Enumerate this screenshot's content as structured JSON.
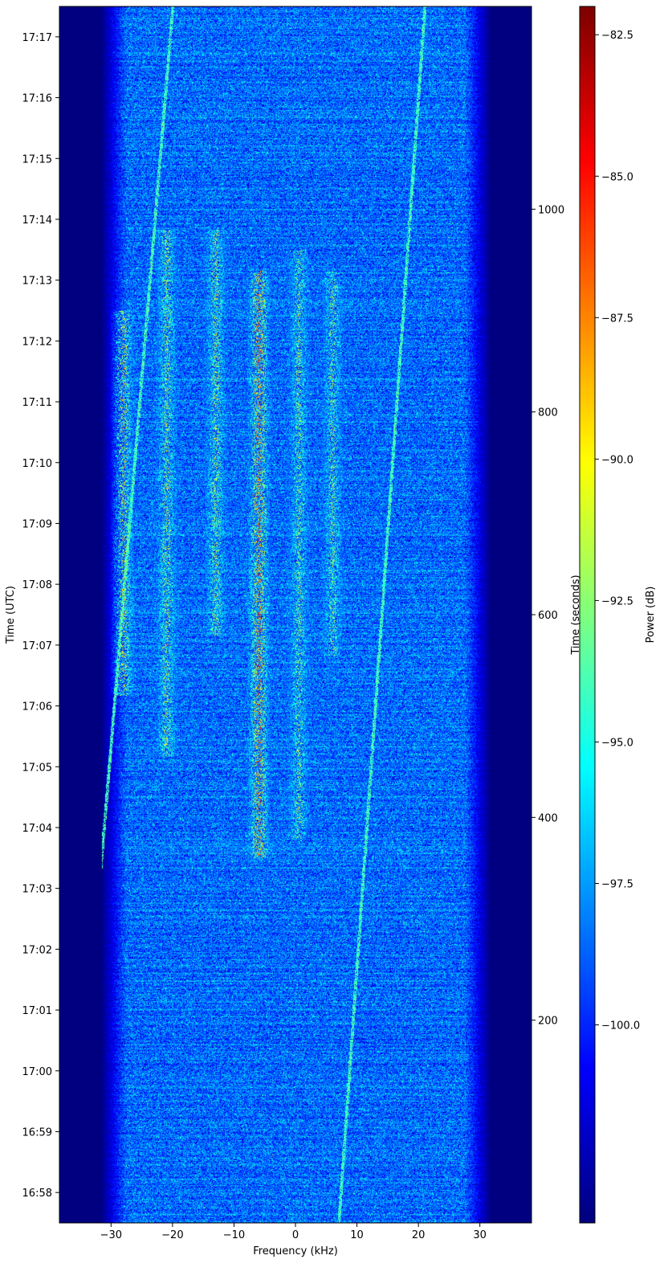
{
  "chart_data": {
    "type": "heatmap",
    "title": "",
    "xlabel": "Frequency (kHz)",
    "ylabel_left": "Time (UTC)",
    "ylabel_right": "Time (seconds)",
    "colorbar_label": "Power (dB)",
    "colormap": "jet",
    "xlim": [
      -38.4,
      38.4
    ],
    "x_ticks": [
      -30,
      -20,
      -10,
      0,
      10,
      20,
      30
    ],
    "x_tick_labels": [
      "−30",
      "−20",
      "−10",
      "0",
      "10",
      "20",
      "30"
    ],
    "time_range_utc": [
      "16:57:30",
      "17:17:30"
    ],
    "time_ticks_utc": [
      "16:58",
      "16:59",
      "17:00",
      "17:01",
      "17:02",
      "17:03",
      "17:04",
      "17:05",
      "17:06",
      "17:07",
      "17:08",
      "17:09",
      "17:10",
      "17:11",
      "17:12",
      "17:13",
      "17:14",
      "17:15",
      "17:16",
      "17:17"
    ],
    "seconds_range": [
      0,
      1200
    ],
    "seconds_ticks": [
      200,
      400,
      600,
      800,
      1000
    ],
    "color_range_db": [
      -103.5,
      -82.0
    ],
    "colorbar_ticks": [
      -82.5,
      -85.0,
      -87.5,
      -90.0,
      -92.5,
      -95.0,
      -97.5,
      -100.0
    ],
    "colorbar_tick_labels": [
      "−82.5",
      "−85.0",
      "−87.5",
      "−90.0",
      "−92.5",
      "−95.0",
      "−97.5",
      "−100.0"
    ],
    "signal_band_khz": [
      -30,
      30
    ],
    "activity_window_seconds": [
      330,
      980
    ],
    "traces": [
      {
        "f_start_khz": 7,
        "f_end_khz": 21,
        "t_start_s": 0,
        "t_end_s": 1200
      },
      {
        "f_start_khz": -32,
        "f_end_khz": -20,
        "t_start_s": 330,
        "t_end_s": 1200
      }
    ],
    "bursts": [
      {
        "f_khz": -6,
        "t_start_s": 360,
        "t_end_s": 940,
        "level_db": -84
      },
      {
        "f_khz": 0.5,
        "t_start_s": 380,
        "t_end_s": 960,
        "level_db": -90
      },
      {
        "f_khz": -13,
        "t_start_s": 580,
        "t_end_s": 980,
        "level_db": -89
      },
      {
        "f_khz": -21,
        "t_start_s": 460,
        "t_end_s": 980,
        "level_db": -89
      },
      {
        "f_khz": 6,
        "t_start_s": 560,
        "t_end_s": 940,
        "level_db": -90
      },
      {
        "f_khz": -28,
        "t_start_s": 520,
        "t_end_s": 900,
        "level_db": -88
      }
    ]
  }
}
